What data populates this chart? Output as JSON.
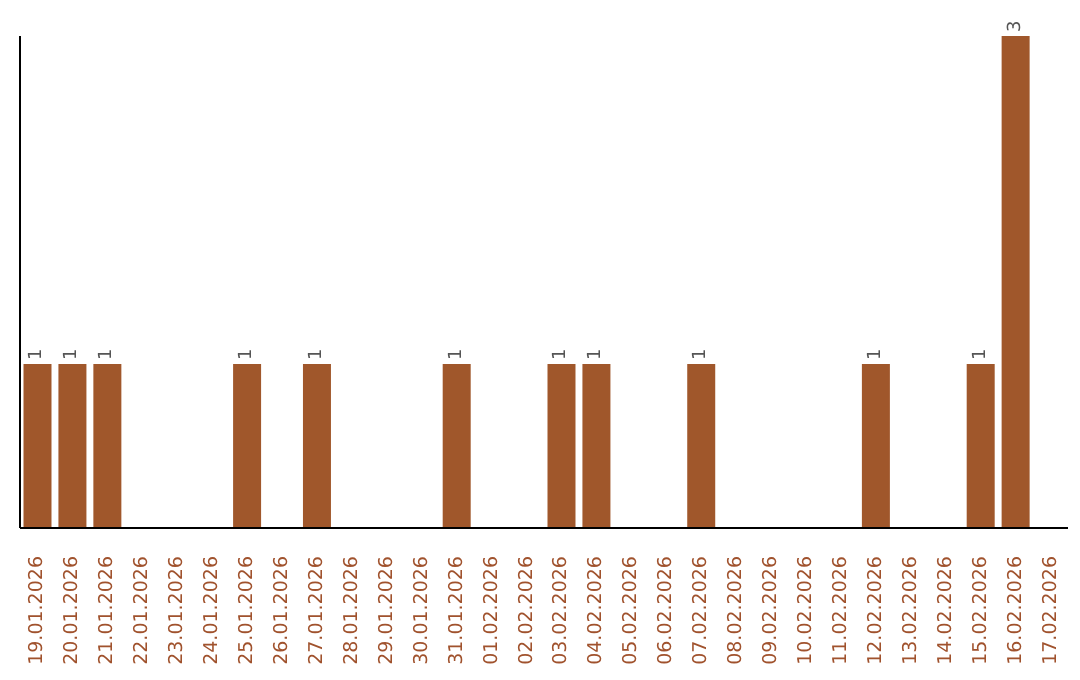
{
  "chart_data": {
    "type": "bar",
    "categories": [
      "19.01.2026",
      "20.01.2026",
      "21.01.2026",
      "22.01.2026",
      "23.01.2026",
      "24.01.2026",
      "25.01.2026",
      "26.01.2026",
      "27.01.2026",
      "28.01.2026",
      "29.01.2026",
      "30.01.2026",
      "31.01.2026",
      "01.02.2026",
      "02.02.2026",
      "03.02.2026",
      "04.02.2026",
      "05.02.2026",
      "06.02.2026",
      "07.02.2026",
      "08.02.2026",
      "09.02.2026",
      "10.02.2026",
      "11.02.2026",
      "12.02.2026",
      "13.02.2026",
      "14.02.2026",
      "15.02.2026",
      "16.02.2026",
      "17.02.2026"
    ],
    "values": [
      1,
      1,
      1,
      0,
      0,
      0,
      1,
      0,
      1,
      0,
      0,
      0,
      1,
      0,
      0,
      1,
      1,
      0,
      0,
      1,
      0,
      0,
      0,
      0,
      1,
      0,
      0,
      1,
      3,
      0
    ],
    "value_labels": [
      "1",
      "1",
      "1",
      null,
      null,
      null,
      "1",
      null,
      "1",
      null,
      null,
      null,
      "1",
      null,
      null,
      "1",
      "1",
      null,
      null,
      "1",
      null,
      null,
      null,
      null,
      "1",
      null,
      null,
      "1",
      "3",
      null
    ],
    "color": "#a0572b",
    "tick_labels": "x"
  }
}
